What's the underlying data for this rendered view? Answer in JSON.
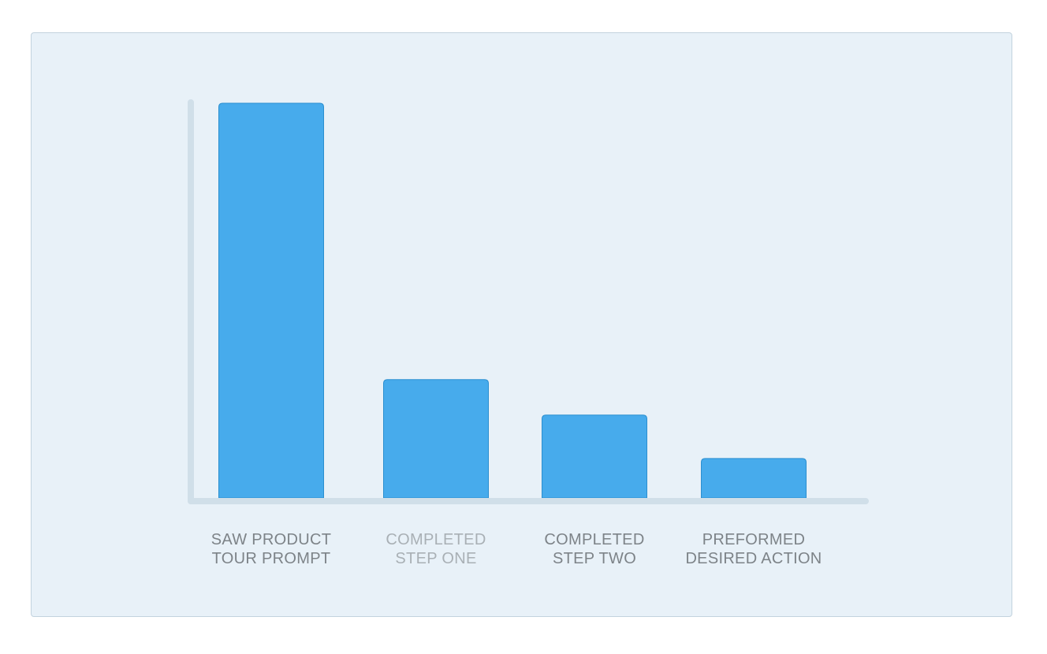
{
  "chart_data": {
    "type": "bar",
    "title": "",
    "xlabel": "",
    "ylabel": "",
    "categories": [
      [
        "SAW PRODUCT",
        "TOUR PROMPT"
      ],
      [
        "COMPLETED",
        "STEP ONE"
      ],
      [
        "COMPLETED",
        "STEP TWO"
      ],
      [
        "PREFORMED",
        "DESIRED ACTION"
      ]
    ],
    "values": [
      100,
      30,
      21,
      10
    ],
    "ylim": [
      0,
      100
    ],
    "grid": false,
    "colors": {
      "bar_fill": "#47abec",
      "bar_stroke": "#2b8fd0",
      "axis": "#d0dfe9",
      "label_default": "#7d8388",
      "label_muted": "#a9b0b5",
      "card_background": "#e8f1f8",
      "card_border": "#c3d3de"
    },
    "label_styles": [
      "default",
      "muted",
      "default",
      "default"
    ]
  }
}
